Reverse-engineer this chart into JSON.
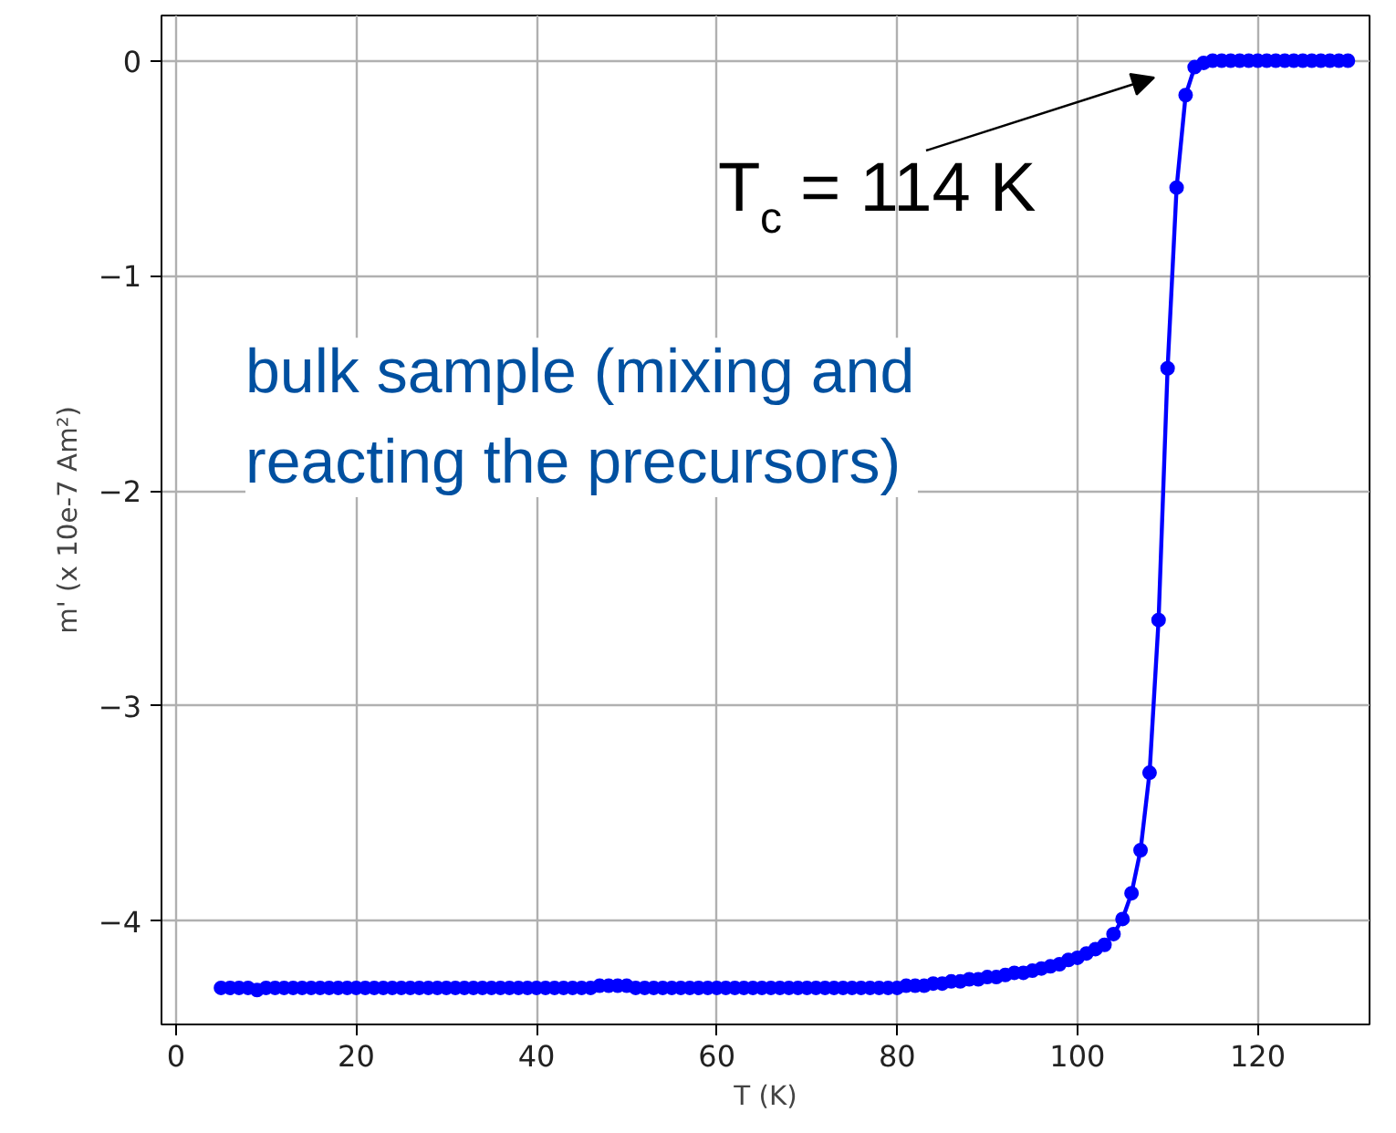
{
  "chart_data": {
    "type": "line",
    "xlabel": "T (K)",
    "ylabel": "m' (x 10e-7 Am²)",
    "xlim": [
      -1.6,
      132.4
    ],
    "ylim": [
      -4.48,
      0.21
    ],
    "xticks": [
      0,
      20,
      40,
      60,
      80,
      100,
      120
    ],
    "yticks": [
      {
        "value": 0,
        "label": "0"
      },
      {
        "value": -1,
        "label": "−1"
      },
      {
        "value": -2,
        "label": "−2"
      },
      {
        "value": -3,
        "label": "−3"
      },
      {
        "value": -4,
        "label": "−4"
      }
    ],
    "grid": true,
    "marker": "circle",
    "line_style": "solid",
    "series": [
      {
        "color": "#0000ff",
        "x": [
          5,
          6,
          7,
          8,
          9,
          10,
          11,
          12,
          13,
          14,
          15,
          16,
          17,
          18,
          19,
          20,
          21,
          22,
          23,
          24,
          25,
          26,
          27,
          28,
          29,
          30,
          31,
          32,
          33,
          34,
          35,
          36,
          37,
          38,
          39,
          40,
          41,
          42,
          43,
          44,
          45,
          46,
          47,
          48,
          49,
          50,
          51,
          52,
          53,
          54,
          55,
          56,
          57,
          58,
          59,
          60,
          61,
          62,
          63,
          64,
          65,
          66,
          67,
          68,
          69,
          70,
          71,
          72,
          73,
          74,
          75,
          76,
          77,
          78,
          79,
          80,
          81,
          82,
          83,
          84,
          85,
          86,
          87,
          88,
          89,
          90,
          91,
          92,
          93,
          94,
          95,
          96,
          97,
          98,
          99,
          100,
          101,
          102,
          103,
          104,
          105,
          106,
          107,
          108,
          109,
          110,
          111,
          112,
          113,
          114,
          115,
          116,
          117,
          118,
          119,
          120,
          121,
          122,
          123,
          124,
          125,
          126,
          127,
          128,
          129,
          130
        ],
        "values": [
          -4.31,
          -4.31,
          -4.31,
          -4.31,
          -4.32,
          -4.31,
          -4.31,
          -4.31,
          -4.31,
          -4.31,
          -4.31,
          -4.31,
          -4.31,
          -4.31,
          -4.31,
          -4.31,
          -4.31,
          -4.31,
          -4.31,
          -4.31,
          -4.31,
          -4.31,
          -4.31,
          -4.31,
          -4.31,
          -4.31,
          -4.31,
          -4.31,
          -4.31,
          -4.31,
          -4.31,
          -4.31,
          -4.31,
          -4.31,
          -4.31,
          -4.31,
          -4.31,
          -4.31,
          -4.31,
          -4.31,
          -4.31,
          -4.31,
          -4.3,
          -4.3,
          -4.3,
          -4.3,
          -4.31,
          -4.31,
          -4.31,
          -4.31,
          -4.31,
          -4.31,
          -4.31,
          -4.31,
          -4.31,
          -4.31,
          -4.31,
          -4.31,
          -4.31,
          -4.31,
          -4.31,
          -4.31,
          -4.31,
          -4.31,
          -4.31,
          -4.31,
          -4.31,
          -4.31,
          -4.31,
          -4.31,
          -4.31,
          -4.31,
          -4.31,
          -4.31,
          -4.31,
          -4.31,
          -4.3,
          -4.3,
          -4.3,
          -4.29,
          -4.29,
          -4.28,
          -4.28,
          -4.27,
          -4.27,
          -4.26,
          -4.26,
          -4.25,
          -4.24,
          -4.24,
          -4.23,
          -4.22,
          -4.21,
          -4.2,
          -4.18,
          -4.17,
          -4.15,
          -4.13,
          -4.11,
          -4.06,
          -3.99,
          -3.87,
          -3.67,
          -3.31,
          -2.6,
          -1.43,
          -0.59,
          -0.16,
          -0.03,
          -0.01,
          0,
          0,
          0,
          0,
          0,
          0,
          0,
          0,
          0,
          0,
          0,
          0,
          0,
          0,
          0,
          0
        ]
      }
    ],
    "annotations": [
      "T$_{c}$ = 114 K",
      "bulk sample (mixing and\nreacting the  precursors)"
    ]
  }
}
